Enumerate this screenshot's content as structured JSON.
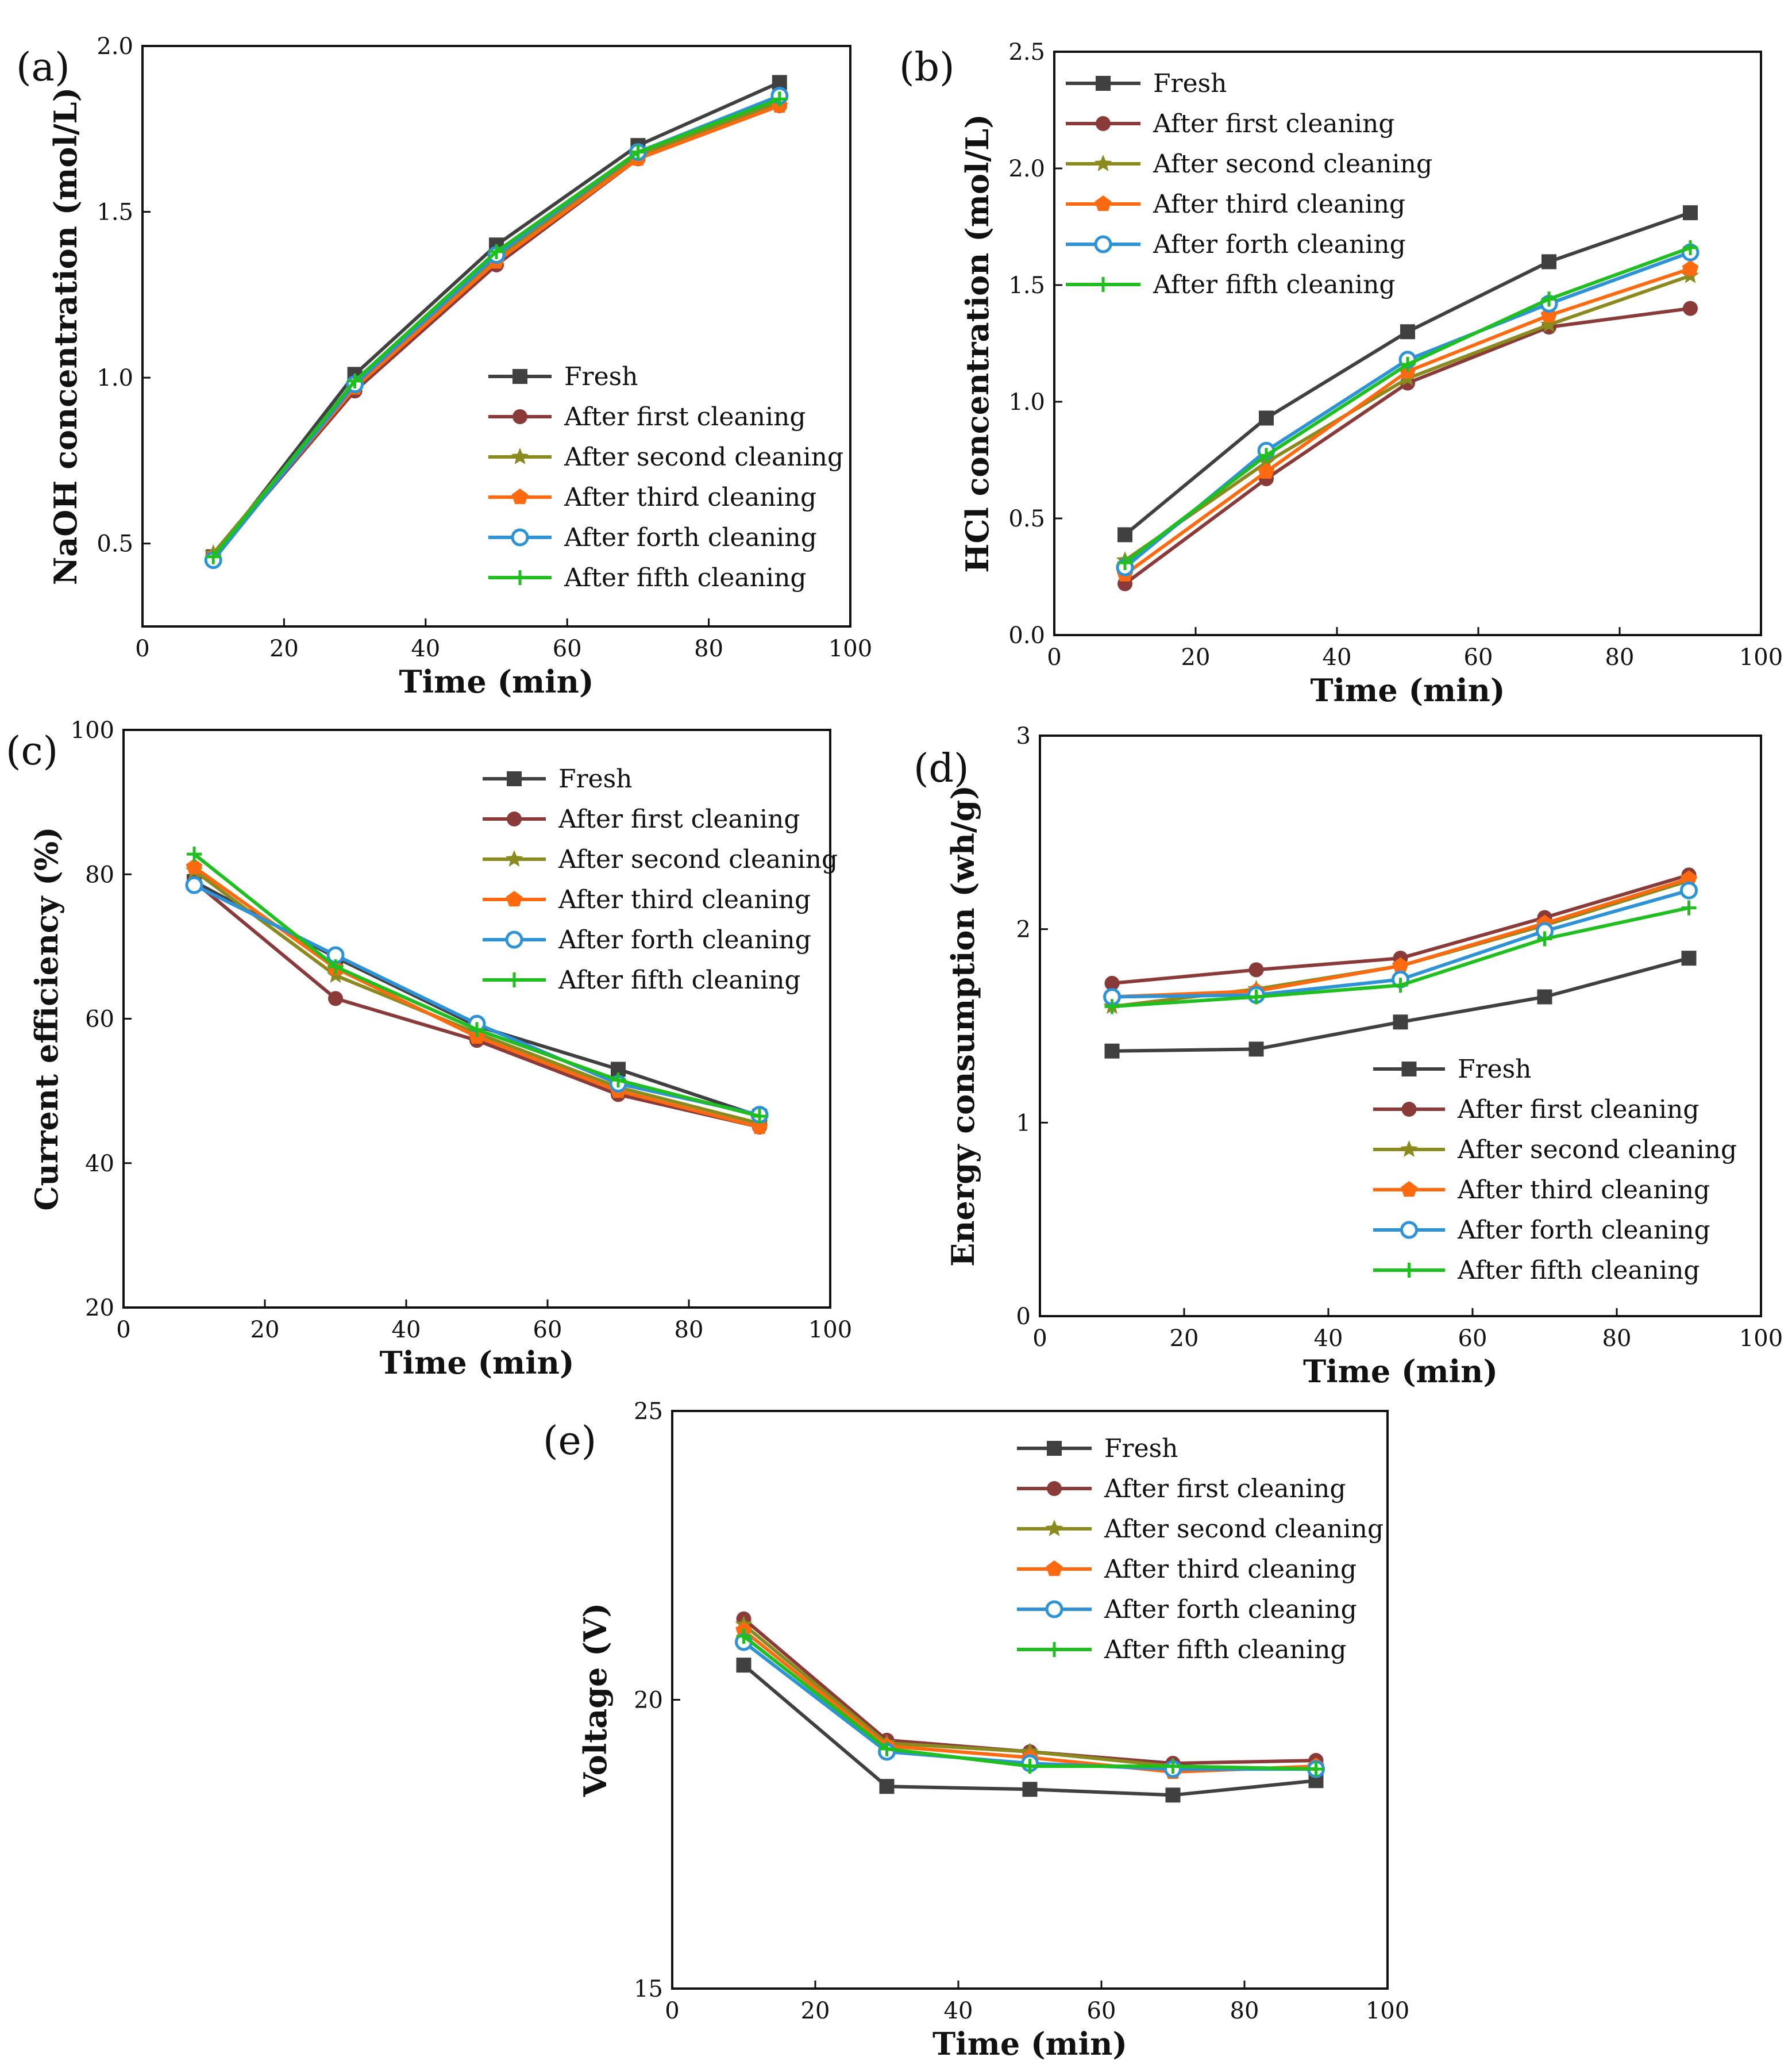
{
  "series_styles": [
    {
      "name": "Fresh",
      "color": "#404040",
      "marker": "square"
    },
    {
      "name": "After first cleaning",
      "color": "#8b3a3a",
      "marker": "circle"
    },
    {
      "name": "After second cleaning",
      "color": "#8a8a1e",
      "marker": "star"
    },
    {
      "name": "After third cleaning",
      "color": "#ff6a10",
      "marker": "pentagon"
    },
    {
      "name": "After forth cleaning",
      "color": "#2e93d6",
      "marker": "circle-open"
    },
    {
      "name": "After fifth cleaning",
      "color": "#1fbf1f",
      "marker": "plus"
    }
  ],
  "chart_data": [
    {
      "type": "line",
      "label": "(a)",
      "xlabel": "Time (min)",
      "ylabel": "NaOH concentration (mol/L)",
      "xlim": [
        0,
        100
      ],
      "ylim": [
        0.25,
        2.0
      ],
      "xticks": [
        0,
        20,
        40,
        60,
        80,
        100
      ],
      "yticks": [
        0.5,
        1.0,
        1.5,
        2.0
      ],
      "ytick_labels": [
        "0.5",
        "1.0",
        "1.5",
        "2.0"
      ],
      "legend": "lower-right",
      "x": [
        10,
        30,
        50,
        70,
        90
      ],
      "series": [
        {
          "name": "Fresh",
          "values": [
            0.46,
            1.01,
            1.4,
            1.7,
            1.89
          ]
        },
        {
          "name": "After first cleaning",
          "values": [
            0.46,
            0.96,
            1.34,
            1.66,
            1.82
          ]
        },
        {
          "name": "After second cleaning",
          "values": [
            0.47,
            0.98,
            1.36,
            1.67,
            1.83
          ]
        },
        {
          "name": "After third cleaning",
          "values": [
            0.46,
            0.97,
            1.35,
            1.66,
            1.82
          ]
        },
        {
          "name": "After forth cleaning",
          "values": [
            0.45,
            0.98,
            1.37,
            1.68,
            1.85
          ]
        },
        {
          "name": "After fifth cleaning",
          "values": [
            0.46,
            0.99,
            1.38,
            1.68,
            1.84
          ]
        }
      ]
    },
    {
      "type": "line",
      "label": "(b)",
      "xlabel": "Time (min)",
      "ylabel": "HCl concentration (mol/L)",
      "xlim": [
        0,
        100
      ],
      "ylim": [
        0,
        2.5
      ],
      "xticks": [
        0,
        20,
        40,
        60,
        80,
        100
      ],
      "yticks": [
        0,
        0.5,
        1.0,
        1.5,
        2.0,
        2.5
      ],
      "ytick_labels": [
        "0.0",
        "0.5",
        "1.0",
        "1.5",
        "2.0",
        "2.5"
      ],
      "legend": "top-left",
      "x": [
        10,
        30,
        50,
        70,
        90
      ],
      "series": [
        {
          "name": "Fresh",
          "values": [
            0.43,
            0.93,
            1.3,
            1.6,
            1.81
          ]
        },
        {
          "name": "After first cleaning",
          "values": [
            0.22,
            0.67,
            1.08,
            1.32,
            1.4
          ]
        },
        {
          "name": "After second cleaning",
          "values": [
            0.32,
            0.74,
            1.1,
            1.33,
            1.54
          ]
        },
        {
          "name": "After third cleaning",
          "values": [
            0.26,
            0.7,
            1.13,
            1.37,
            1.57
          ]
        },
        {
          "name": "After forth cleaning",
          "values": [
            0.29,
            0.79,
            1.18,
            1.42,
            1.64
          ]
        },
        {
          "name": "After fifth cleaning",
          "values": [
            0.31,
            0.77,
            1.16,
            1.44,
            1.66
          ]
        }
      ]
    },
    {
      "type": "line",
      "label": "(c)",
      "xlabel": "Time (min)",
      "ylabel": "Current efficiency (%)",
      "xlim": [
        0,
        100
      ],
      "ylim": [
        20,
        100
      ],
      "xticks": [
        0,
        20,
        40,
        60,
        80,
        100
      ],
      "yticks": [
        20,
        40,
        60,
        80,
        100
      ],
      "ytick_labels": [
        "20",
        "40",
        "60",
        "80",
        "100"
      ],
      "legend": "top-right",
      "x": [
        10,
        30,
        50,
        70,
        90
      ],
      "series": [
        {
          "name": "Fresh",
          "values": [
            79,
            68.5,
            59,
            53,
            46.5
          ]
        },
        {
          "name": "After first cleaning",
          "values": [
            79,
            62.8,
            57,
            49.5,
            45
          ]
        },
        {
          "name": "After second cleaning",
          "values": [
            80.5,
            66,
            58,
            50.5,
            45.5
          ]
        },
        {
          "name": "After third cleaning",
          "values": [
            81,
            67,
            57.5,
            50,
            45
          ]
        },
        {
          "name": "After forth cleaning",
          "values": [
            78.5,
            68.8,
            59.3,
            51,
            46.7
          ]
        },
        {
          "name": "After fifth cleaning",
          "values": [
            82.8,
            67.2,
            58.5,
            51.5,
            46.5
          ]
        }
      ]
    },
    {
      "type": "line",
      "label": "(d)",
      "xlabel": "Time (min)",
      "ylabel": "Energy consumption (wh/g)",
      "xlim": [
        0,
        100
      ],
      "ylim": [
        0,
        3
      ],
      "xticks": [
        0,
        20,
        40,
        60,
        80,
        100
      ],
      "yticks": [
        0,
        1,
        2,
        3
      ],
      "ytick_labels": [
        "0",
        "1",
        "2",
        "3"
      ],
      "legend": "lower-right",
      "x": [
        10,
        30,
        50,
        70,
        90
      ],
      "series": [
        {
          "name": "Fresh",
          "values": [
            1.37,
            1.38,
            1.52,
            1.65,
            1.85
          ]
        },
        {
          "name": "After first cleaning",
          "values": [
            1.72,
            1.79,
            1.85,
            2.06,
            2.28
          ]
        },
        {
          "name": "After second cleaning",
          "values": [
            1.6,
            1.69,
            1.81,
            2.02,
            2.25
          ]
        },
        {
          "name": "After third cleaning",
          "values": [
            1.65,
            1.68,
            1.81,
            2.03,
            2.26
          ]
        },
        {
          "name": "After forth cleaning",
          "values": [
            1.65,
            1.66,
            1.74,
            1.99,
            2.2
          ]
        },
        {
          "name": "After fifth cleaning",
          "values": [
            1.6,
            1.65,
            1.71,
            1.95,
            2.11
          ]
        }
      ]
    },
    {
      "type": "line",
      "label": "(e)",
      "xlabel": "Time (min)",
      "ylabel": "Voltage (V)",
      "xlim": [
        0,
        100
      ],
      "ylim": [
        15,
        25
      ],
      "xticks": [
        0,
        20,
        40,
        60,
        80,
        100
      ],
      "yticks": [
        15,
        20,
        25
      ],
      "ytick_labels": [
        "15",
        "20",
        "25"
      ],
      "legend": "top-right",
      "x": [
        10,
        30,
        50,
        70,
        90
      ],
      "series": [
        {
          "name": "Fresh",
          "values": [
            20.6,
            18.5,
            18.45,
            18.35,
            18.6
          ]
        },
        {
          "name": "After first cleaning",
          "values": [
            21.4,
            19.3,
            19.1,
            18.9,
            18.95
          ]
        },
        {
          "name": "After second cleaning",
          "values": [
            21.3,
            19.25,
            19.1,
            18.85,
            18.8
          ]
        },
        {
          "name": "After third cleaning",
          "values": [
            21.2,
            19.2,
            19.0,
            18.75,
            18.85
          ]
        },
        {
          "name": "After forth cleaning",
          "values": [
            21.0,
            19.1,
            18.9,
            18.8,
            18.8
          ]
        },
        {
          "name": "After fifth cleaning",
          "values": [
            21.1,
            19.15,
            18.85,
            18.85,
            18.8
          ]
        }
      ]
    }
  ]
}
